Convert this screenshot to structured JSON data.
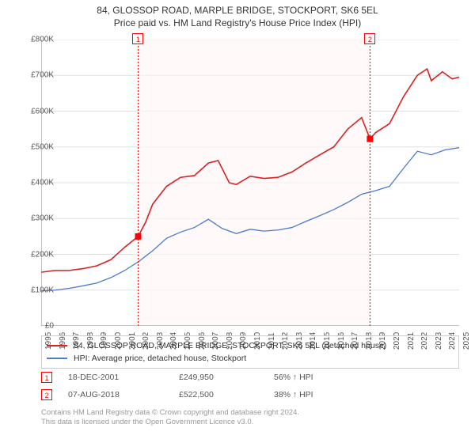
{
  "title": {
    "line1": "84, GLOSSOP ROAD, MARPLE BRIDGE, STOCKPORT, SK6 5EL",
    "line2": "Price paid vs. HM Land Registry's House Price Index (HPI)"
  },
  "chart": {
    "type": "line",
    "background_color": "#ffffff",
    "grid_color": "#e0e0e0",
    "axis_color": "#888888",
    "tick_fontsize": 10,
    "tick_color": "#555555",
    "x_years": [
      1995,
      1996,
      1997,
      1998,
      1999,
      2000,
      2001,
      2002,
      2003,
      2004,
      2005,
      2006,
      2007,
      2008,
      2009,
      2010,
      2011,
      2012,
      2013,
      2014,
      2015,
      2016,
      2017,
      2018,
      2019,
      2020,
      2021,
      2022,
      2023,
      2024,
      2025
    ],
    "ylim": [
      0,
      800000
    ],
    "ytick_step": 100000,
    "yticks": [
      "£0",
      "£100K",
      "£200K",
      "£300K",
      "£400K",
      "£500K",
      "£600K",
      "£700K",
      "£800K"
    ],
    "series": [
      {
        "name": "property",
        "label": "84, GLOSSOP ROAD, MARPLE BRIDGE, STOCKPORT, SK6 5EL (detached house)",
        "color": "#da2020",
        "line_width": 1.6,
        "data": [
          [
            1995,
            150000
          ],
          [
            1996,
            155000
          ],
          [
            1997,
            155000
          ],
          [
            1998,
            160000
          ],
          [
            1999,
            168000
          ],
          [
            2000,
            185000
          ],
          [
            2001,
            220000
          ],
          [
            2001.96,
            249950
          ],
          [
            2002.5,
            290000
          ],
          [
            2003,
            340000
          ],
          [
            2004,
            390000
          ],
          [
            2005,
            415000
          ],
          [
            2006,
            420000
          ],
          [
            2007,
            455000
          ],
          [
            2007.7,
            462000
          ],
          [
            2008.5,
            400000
          ],
          [
            2009,
            395000
          ],
          [
            2010,
            418000
          ],
          [
            2011,
            412000
          ],
          [
            2012,
            415000
          ],
          [
            2013,
            430000
          ],
          [
            2014,
            455000
          ],
          [
            2015,
            478000
          ],
          [
            2016,
            500000
          ],
          [
            2017,
            550000
          ],
          [
            2018,
            582000
          ],
          [
            2018.6,
            522500
          ],
          [
            2019,
            540000
          ],
          [
            2020,
            565000
          ],
          [
            2021,
            640000
          ],
          [
            2022,
            700000
          ],
          [
            2022.7,
            718000
          ],
          [
            2023,
            685000
          ],
          [
            2023.8,
            710000
          ],
          [
            2024.5,
            690000
          ],
          [
            2025,
            695000
          ]
        ]
      },
      {
        "name": "hpi",
        "label": "HPI: Average price, detached house, Stockport",
        "color": "#4a7bd0",
        "line_width": 1.3,
        "data": [
          [
            1995,
            98000
          ],
          [
            1996,
            100000
          ],
          [
            1997,
            105000
          ],
          [
            1998,
            112000
          ],
          [
            1999,
            120000
          ],
          [
            2000,
            135000
          ],
          [
            2001,
            155000
          ],
          [
            2002,
            180000
          ],
          [
            2003,
            210000
          ],
          [
            2004,
            245000
          ],
          [
            2005,
            262000
          ],
          [
            2006,
            275000
          ],
          [
            2007,
            298000
          ],
          [
            2008,
            272000
          ],
          [
            2009,
            258000
          ],
          [
            2010,
            270000
          ],
          [
            2011,
            265000
          ],
          [
            2012,
            268000
          ],
          [
            2013,
            275000
          ],
          [
            2014,
            292000
          ],
          [
            2015,
            308000
          ],
          [
            2016,
            325000
          ],
          [
            2017,
            345000
          ],
          [
            2018,
            368000
          ],
          [
            2019,
            378000
          ],
          [
            2020,
            390000
          ],
          [
            2021,
            440000
          ],
          [
            2022,
            488000
          ],
          [
            2023,
            478000
          ],
          [
            2024,
            492000
          ],
          [
            2025,
            498000
          ]
        ]
      }
    ],
    "transactions": [
      {
        "n": "1",
        "year": 2001.96,
        "value": 249950,
        "date": "18-DEC-2001",
        "price": "£249,950",
        "pct": "56% ↑ HPI"
      },
      {
        "n": "2",
        "year": 2018.6,
        "value": 522500,
        "date": "07-AUG-2018",
        "price": "£522,500",
        "pct": "38% ↑ HPI"
      }
    ],
    "marker_color": "#ff0000",
    "vline_color": "#ff0000",
    "band_fill": "#fff5f5",
    "band_opacity": 0.6
  },
  "footer": {
    "line1": "Contains HM Land Registry data © Crown copyright and database right 2024.",
    "line2": "This data is licensed under the Open Government Licence v3.0."
  }
}
